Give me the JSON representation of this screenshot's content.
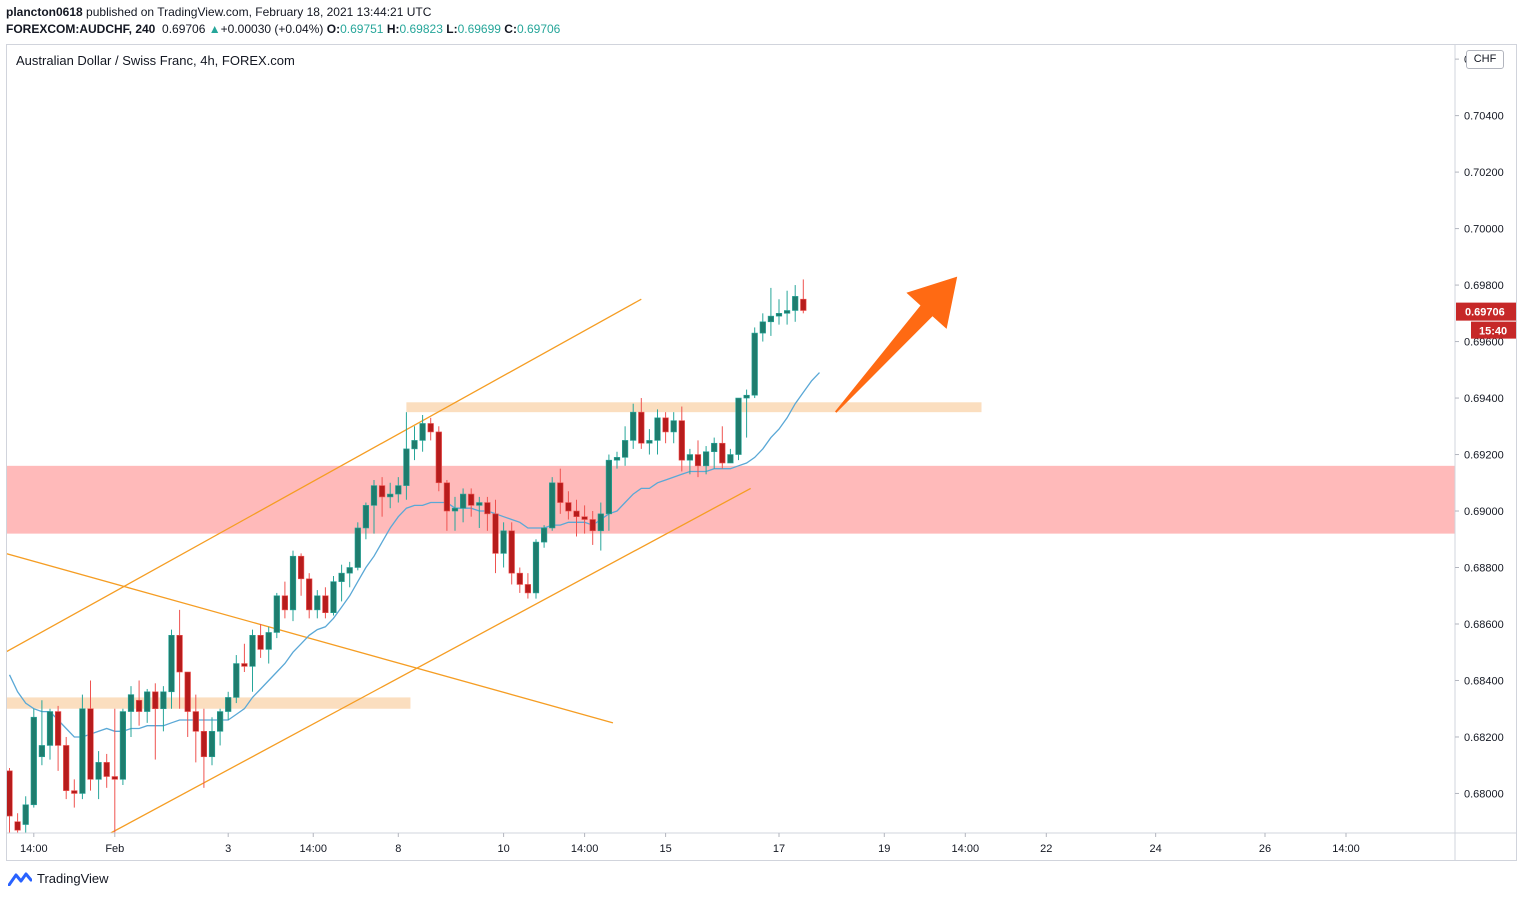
{
  "header": {
    "publisher_user": "plancton0618",
    "publisher_text": "published on TradingView.com, February 18, 2021 13:44:21 UTC",
    "symbol": "FOREXCOM:AUDCHF, 240",
    "last": "0.69706",
    "change_arrow": "▲",
    "change": "+0.00030 (+0.04%)",
    "o_label": "O:",
    "o_value": "0.69751",
    "h_label": "H:",
    "h_value": "0.69823",
    "l_label": "L:",
    "l_value": "0.69699",
    "c_label": "C:",
    "c_value": "0.69706"
  },
  "chart_title": "Australian Dollar / Swiss Franc, 4h, FOREX.com",
  "currency_badge": "CHF",
  "footer": {
    "logo_text": "TradingView",
    "logo_icon": "tradingview-logo-icon"
  },
  "colors": {
    "bull": "#26a69a",
    "bear": "#ef5350",
    "bull_body": "#1e7d6e",
    "bear_body": "#b71c1c",
    "ma": "#5aa8d6",
    "trend": "#f59d23",
    "support_zone": "#ffb3b3",
    "level_band": "#fad8b4",
    "arrow": "#ff6a13",
    "price_tag": "#c62828"
  },
  "chart_data": {
    "type": "candlestick",
    "ylim": [
      0.6786,
      0.7065
    ],
    "y_ticks": [
      "0.68000",
      "0.68200",
      "0.68400",
      "0.68600",
      "0.68800",
      "0.69000",
      "0.69200",
      "0.69400",
      "0.69600",
      "0.69800",
      "0.70000",
      "0.70200",
      "0.70400",
      "0.70600"
    ],
    "x_ticks": [
      {
        "label": "14:00",
        "i": 3
      },
      {
        "label": "Feb",
        "i": 13
      },
      {
        "label": "3",
        "i": 27
      },
      {
        "label": "14:00",
        "i": 37.5
      },
      {
        "label": "8",
        "i": 48
      },
      {
        "label": "10",
        "i": 61
      },
      {
        "label": "14:00",
        "i": 71
      },
      {
        "label": "15",
        "i": 81
      },
      {
        "label": "17",
        "i": 95
      },
      {
        "label": "19",
        "i": 108
      },
      {
        "label": "14:00",
        "i": 118
      },
      {
        "label": "22",
        "i": 128
      },
      {
        "label": "24",
        "i": 141.5
      },
      {
        "label": "26",
        "i": 155
      },
      {
        "label": "14:00",
        "i": 165
      }
    ],
    "last_price": "0.69706",
    "countdown": "15:40",
    "candles": [
      {
        "o": 0.6808,
        "h": 0.6809,
        "l": 0.6786,
        "c": 0.6792
      },
      {
        "o": 0.679,
        "h": 0.6793,
        "l": 0.6785,
        "c": 0.6787
      },
      {
        "o": 0.6789,
        "h": 0.6799,
        "l": 0.6786,
        "c": 0.6796
      },
      {
        "o": 0.6796,
        "h": 0.683,
        "l": 0.6795,
        "c": 0.6827
      },
      {
        "o": 0.6813,
        "h": 0.6833,
        "l": 0.681,
        "c": 0.6817
      },
      {
        "o": 0.6817,
        "h": 0.683,
        "l": 0.6812,
        "c": 0.6829
      },
      {
        "o": 0.6829,
        "h": 0.6831,
        "l": 0.6808,
        "c": 0.6817
      },
      {
        "o": 0.6817,
        "h": 0.682,
        "l": 0.6798,
        "c": 0.6801
      },
      {
        "o": 0.6801,
        "h": 0.6805,
        "l": 0.6795,
        "c": 0.68
      },
      {
        "o": 0.68,
        "h": 0.6835,
        "l": 0.6798,
        "c": 0.683
      },
      {
        "o": 0.683,
        "h": 0.684,
        "l": 0.6801,
        "c": 0.6805
      },
      {
        "o": 0.6805,
        "h": 0.6815,
        "l": 0.6798,
        "c": 0.6811
      },
      {
        "o": 0.6811,
        "h": 0.6814,
        "l": 0.6802,
        "c": 0.6806
      },
      {
        "o": 0.6806,
        "h": 0.683,
        "l": 0.6785,
        "c": 0.6805
      },
      {
        "o": 0.6805,
        "h": 0.683,
        "l": 0.6803,
        "c": 0.6829
      },
      {
        "o": 0.6829,
        "h": 0.6838,
        "l": 0.682,
        "c": 0.6835
      },
      {
        "o": 0.6833,
        "h": 0.684,
        "l": 0.6824,
        "c": 0.6829
      },
      {
        "o": 0.6829,
        "h": 0.6837,
        "l": 0.6825,
        "c": 0.6836
      },
      {
        "o": 0.6836,
        "h": 0.6839,
        "l": 0.6812,
        "c": 0.683
      },
      {
        "o": 0.683,
        "h": 0.6838,
        "l": 0.6822,
        "c": 0.6836
      },
      {
        "o": 0.6836,
        "h": 0.6858,
        "l": 0.683,
        "c": 0.6856
      },
      {
        "o": 0.6856,
        "h": 0.6865,
        "l": 0.683,
        "c": 0.6843
      },
      {
        "o": 0.6843,
        "h": 0.6843,
        "l": 0.682,
        "c": 0.6829
      },
      {
        "o": 0.6829,
        "h": 0.6835,
        "l": 0.6811,
        "c": 0.6822
      },
      {
        "o": 0.6822,
        "h": 0.683,
        "l": 0.6802,
        "c": 0.6813
      },
      {
        "o": 0.6813,
        "h": 0.6827,
        "l": 0.681,
        "c": 0.6822
      },
      {
        "o": 0.6822,
        "h": 0.683,
        "l": 0.6817,
        "c": 0.6829
      },
      {
        "o": 0.6829,
        "h": 0.6836,
        "l": 0.6826,
        "c": 0.6834
      },
      {
        "o": 0.6834,
        "h": 0.6849,
        "l": 0.6832,
        "c": 0.6846
      },
      {
        "o": 0.6846,
        "h": 0.6853,
        "l": 0.6843,
        "c": 0.6845
      },
      {
        "o": 0.6845,
        "h": 0.6858,
        "l": 0.6836,
        "c": 0.6856
      },
      {
        "o": 0.6856,
        "h": 0.686,
        "l": 0.6848,
        "c": 0.6851
      },
      {
        "o": 0.6851,
        "h": 0.6859,
        "l": 0.6846,
        "c": 0.6857
      },
      {
        "o": 0.6857,
        "h": 0.6871,
        "l": 0.6855,
        "c": 0.687
      },
      {
        "o": 0.687,
        "h": 0.6875,
        "l": 0.6862,
        "c": 0.6865
      },
      {
        "o": 0.6865,
        "h": 0.6886,
        "l": 0.6861,
        "c": 0.6884
      },
      {
        "o": 0.6884,
        "h": 0.6885,
        "l": 0.687,
        "c": 0.6876
      },
      {
        "o": 0.6876,
        "h": 0.6878,
        "l": 0.6862,
        "c": 0.6865
      },
      {
        "o": 0.6865,
        "h": 0.6872,
        "l": 0.6862,
        "c": 0.687
      },
      {
        "o": 0.687,
        "h": 0.6873,
        "l": 0.6862,
        "c": 0.6864
      },
      {
        "o": 0.6864,
        "h": 0.6877,
        "l": 0.6863,
        "c": 0.6875
      },
      {
        "o": 0.6875,
        "h": 0.6881,
        "l": 0.6868,
        "c": 0.6878
      },
      {
        "o": 0.6878,
        "h": 0.6882,
        "l": 0.6873,
        "c": 0.688
      },
      {
        "o": 0.688,
        "h": 0.6896,
        "l": 0.6879,
        "c": 0.6894
      },
      {
        "o": 0.6894,
        "h": 0.6903,
        "l": 0.689,
        "c": 0.6902
      },
      {
        "o": 0.6902,
        "h": 0.6911,
        "l": 0.6892,
        "c": 0.6909
      },
      {
        "o": 0.6909,
        "h": 0.6912,
        "l": 0.6898,
        "c": 0.6905
      },
      {
        "o": 0.6905,
        "h": 0.691,
        "l": 0.6901,
        "c": 0.6906
      },
      {
        "o": 0.6906,
        "h": 0.6912,
        "l": 0.6903,
        "c": 0.6909
      },
      {
        "o": 0.6909,
        "h": 0.6935,
        "l": 0.6904,
        "c": 0.6922
      },
      {
        "o": 0.6922,
        "h": 0.693,
        "l": 0.6918,
        "c": 0.6925
      },
      {
        "o": 0.6925,
        "h": 0.6934,
        "l": 0.6921,
        "c": 0.6931
      },
      {
        "o": 0.6931,
        "h": 0.6933,
        "l": 0.6925,
        "c": 0.6928
      },
      {
        "o": 0.6928,
        "h": 0.693,
        "l": 0.6907,
        "c": 0.691
      },
      {
        "o": 0.691,
        "h": 0.6911,
        "l": 0.6893,
        "c": 0.69
      },
      {
        "o": 0.69,
        "h": 0.6905,
        "l": 0.6893,
        "c": 0.6901
      },
      {
        "o": 0.6901,
        "h": 0.6908,
        "l": 0.6896,
        "c": 0.6906
      },
      {
        "o": 0.6906,
        "h": 0.6908,
        "l": 0.6898,
        "c": 0.6902
      },
      {
        "o": 0.6902,
        "h": 0.6905,
        "l": 0.6894,
        "c": 0.6903
      },
      {
        "o": 0.6903,
        "h": 0.6905,
        "l": 0.6893,
        "c": 0.6899
      },
      {
        "o": 0.6899,
        "h": 0.6904,
        "l": 0.6878,
        "c": 0.6885
      },
      {
        "o": 0.6885,
        "h": 0.6896,
        "l": 0.688,
        "c": 0.6893
      },
      {
        "o": 0.6893,
        "h": 0.6896,
        "l": 0.6874,
        "c": 0.6878
      },
      {
        "o": 0.6878,
        "h": 0.688,
        "l": 0.6871,
        "c": 0.6874
      },
      {
        "o": 0.6874,
        "h": 0.6878,
        "l": 0.6869,
        "c": 0.6871
      },
      {
        "o": 0.6871,
        "h": 0.689,
        "l": 0.6869,
        "c": 0.6889
      },
      {
        "o": 0.6889,
        "h": 0.6895,
        "l": 0.6887,
        "c": 0.6894
      },
      {
        "o": 0.6894,
        "h": 0.6912,
        "l": 0.6893,
        "c": 0.691
      },
      {
        "o": 0.691,
        "h": 0.6915,
        "l": 0.6899,
        "c": 0.6903
      },
      {
        "o": 0.6903,
        "h": 0.6907,
        "l": 0.6897,
        "c": 0.69
      },
      {
        "o": 0.69,
        "h": 0.6904,
        "l": 0.6891,
        "c": 0.6898
      },
      {
        "o": 0.6898,
        "h": 0.6902,
        "l": 0.6892,
        "c": 0.6897
      },
      {
        "o": 0.6897,
        "h": 0.69,
        "l": 0.6888,
        "c": 0.6893
      },
      {
        "o": 0.6893,
        "h": 0.6903,
        "l": 0.6886,
        "c": 0.6899
      },
      {
        "o": 0.6899,
        "h": 0.692,
        "l": 0.6893,
        "c": 0.6918
      },
      {
        "o": 0.6918,
        "h": 0.6921,
        "l": 0.6915,
        "c": 0.6919
      },
      {
        "o": 0.6919,
        "h": 0.693,
        "l": 0.6916,
        "c": 0.6925
      },
      {
        "o": 0.6925,
        "h": 0.6938,
        "l": 0.6922,
        "c": 0.6935
      },
      {
        "o": 0.6935,
        "h": 0.694,
        "l": 0.6922,
        "c": 0.6924
      },
      {
        "o": 0.6924,
        "h": 0.6929,
        "l": 0.692,
        "c": 0.6925
      },
      {
        "o": 0.6925,
        "h": 0.6936,
        "l": 0.692,
        "c": 0.6933
      },
      {
        "o": 0.6933,
        "h": 0.6935,
        "l": 0.6924,
        "c": 0.6928
      },
      {
        "o": 0.6928,
        "h": 0.6935,
        "l": 0.6924,
        "c": 0.6932
      },
      {
        "o": 0.6932,
        "h": 0.6937,
        "l": 0.6914,
        "c": 0.6918
      },
      {
        "o": 0.6918,
        "h": 0.6922,
        "l": 0.6913,
        "c": 0.692
      },
      {
        "o": 0.692,
        "h": 0.6925,
        "l": 0.6912,
        "c": 0.6916
      },
      {
        "o": 0.6916,
        "h": 0.6923,
        "l": 0.6913,
        "c": 0.6921
      },
      {
        "o": 0.6921,
        "h": 0.6926,
        "l": 0.6915,
        "c": 0.6924
      },
      {
        "o": 0.6924,
        "h": 0.693,
        "l": 0.6915,
        "c": 0.6917
      },
      {
        "o": 0.6917,
        "h": 0.6922,
        "l": 0.6917,
        "c": 0.692
      },
      {
        "o": 0.692,
        "h": 0.694,
        "l": 0.6918,
        "c": 0.694
      },
      {
        "o": 0.694,
        "h": 0.6943,
        "l": 0.6926,
        "c": 0.6941
      },
      {
        "o": 0.6941,
        "h": 0.6965,
        "l": 0.694,
        "c": 0.6963
      },
      {
        "o": 0.6963,
        "h": 0.697,
        "l": 0.696,
        "c": 0.6967
      },
      {
        "o": 0.6967,
        "h": 0.6979,
        "l": 0.6962,
        "c": 0.6969
      },
      {
        "o": 0.6969,
        "h": 0.6975,
        "l": 0.6966,
        "c": 0.697
      },
      {
        "o": 0.697,
        "h": 0.6978,
        "l": 0.6966,
        "c": 0.6971
      },
      {
        "o": 0.6971,
        "h": 0.698,
        "l": 0.6967,
        "c": 0.6976
      },
      {
        "o": 0.6975,
        "h": 0.6982,
        "l": 0.697,
        "c": 0.6971
      }
    ],
    "ma20": [
      0.6842,
      0.6836,
      0.6832,
      0.683,
      0.6829,
      0.6829,
      0.6826,
      0.6823,
      0.682,
      0.682,
      0.6821,
      0.6822,
      0.6823,
      0.6822,
      0.6822,
      0.6823,
      0.6823,
      0.6824,
      0.6824,
      0.6824,
      0.6825,
      0.6826,
      0.6826,
      0.6826,
      0.6826,
      0.6826,
      0.6826,
      0.6826,
      0.6828,
      0.683,
      0.6834,
      0.6837,
      0.684,
      0.6843,
      0.6846,
      0.685,
      0.6853,
      0.6856,
      0.6858,
      0.6859,
      0.6862,
      0.6866,
      0.687,
      0.6875,
      0.688,
      0.6884,
      0.6889,
      0.6894,
      0.6898,
      0.6901,
      0.6902,
      0.6902,
      0.6903,
      0.6903,
      0.6903,
      0.6901,
      0.6901,
      0.6901,
      0.69,
      0.69,
      0.6899,
      0.6898,
      0.6897,
      0.6896,
      0.6894,
      0.6894,
      0.6894,
      0.6895,
      0.6895,
      0.6896,
      0.6896,
      0.6896,
      0.6895,
      0.6897,
      0.6899,
      0.69,
      0.6903,
      0.6906,
      0.6908,
      0.6908,
      0.691,
      0.6911,
      0.6912,
      0.6913,
      0.6914,
      0.6914,
      0.6914,
      0.6915,
      0.6915,
      0.6915,
      0.6916,
      0.6917,
      0.6919,
      0.6922,
      0.6926,
      0.6929,
      0.6933,
      0.6938,
      0.6942,
      0.6946,
      0.6949
    ]
  },
  "annotations": {
    "support_zone": {
      "top": 0.6916,
      "bottom": 0.6892
    },
    "resistance_band": {
      "top": 0.69385,
      "bottom": 0.6935,
      "i_from": 49,
      "i_to": 120
    },
    "low_band": {
      "top": 0.6834,
      "bottom": 0.683,
      "i_from": -0.5,
      "i_to": 49.5
    },
    "channel_upper": {
      "i1": -0.5,
      "p1": 0.685,
      "i2": 78,
      "p2": 0.6975
    },
    "channel_lower": {
      "i1": 12.5,
      "p1": 0.6786,
      "i2": 91.5,
      "p2": 0.6908
    },
    "falling_line": {
      "i1": -0.5,
      "p1": 0.6885,
      "i2": 74.5,
      "p2": 0.6825
    },
    "arrow": {
      "i1": 102,
      "p1": 0.6935,
      "i2": 117,
      "p2": 0.6983
    }
  }
}
